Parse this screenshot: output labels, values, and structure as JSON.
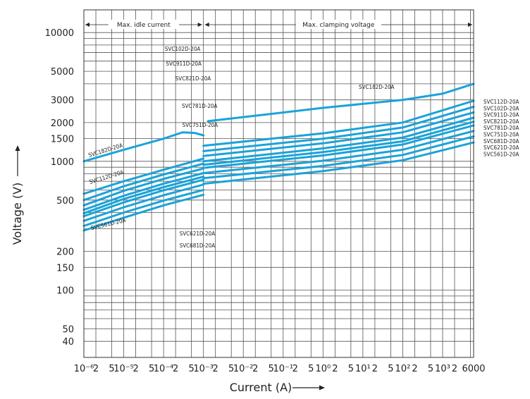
{
  "chart_data": {
    "type": "line",
    "title": "",
    "xlabel": "Current (A)",
    "ylabel": "Voltage (V)",
    "x_scale": "log",
    "y_scale": "log",
    "xlim": [
      1e-06,
      6000
    ],
    "ylim": [
      30,
      15000
    ],
    "grid": true,
    "line_color": "#1aa3d9",
    "sections": [
      {
        "label": "Max. idle current",
        "x_range": [
          1e-06,
          0.001
        ]
      },
      {
        "label": "Max. clamping voltage",
        "x_range": [
          0.001,
          6000
        ]
      }
    ],
    "x_ticks": [
      {
        "x": 1e-06,
        "text": "10⁻⁶"
      },
      {
        "x": 2e-06,
        "text": "2"
      },
      {
        "x": 5e-06,
        "text": "5"
      },
      {
        "x": 1e-05,
        "text": "10⁻⁵"
      },
      {
        "x": 2e-05,
        "text": "2"
      },
      {
        "x": 5e-05,
        "text": "5"
      },
      {
        "x": 0.0001,
        "text": "10⁻⁴"
      },
      {
        "x": 0.0002,
        "text": "2"
      },
      {
        "x": 0.0005,
        "text": "5"
      },
      {
        "x": 0.001,
        "text": "10⁻³"
      },
      {
        "x": 0.002,
        "text": "2"
      },
      {
        "x": 0.005,
        "text": "5"
      },
      {
        "x": 0.01,
        "text": "10⁻²"
      },
      {
        "x": 0.02,
        "text": "2"
      },
      {
        "x": 0.05,
        "text": "5"
      },
      {
        "x": 0.1,
        "text": "10⁻¹"
      },
      {
        "x": 0.2,
        "text": "2"
      },
      {
        "x": 0.5,
        "text": "5"
      },
      {
        "x": 1,
        "text": "10⁰"
      },
      {
        "x": 2,
        "text": "2"
      },
      {
        "x": 5,
        "text": "5"
      },
      {
        "x": 10,
        "text": "10¹"
      },
      {
        "x": 20,
        "text": "2"
      },
      {
        "x": 50,
        "text": "5"
      },
      {
        "x": 100,
        "text": "10²"
      },
      {
        "x": 200,
        "text": "2"
      },
      {
        "x": 500,
        "text": "5"
      },
      {
        "x": 1000,
        "text": "10³"
      },
      {
        "x": 2000,
        "text": "2"
      },
      {
        "x": 6000,
        "text": "6000"
      }
    ],
    "y_ticks": [
      40,
      50,
      100,
      150,
      200,
      500,
      1000,
      1500,
      2000,
      3000,
      5000,
      10000
    ],
    "series": [
      {
        "name": "SVC182D-20A",
        "idle": [
          [
            1e-06,
            1000
          ],
          [
            1e-05,
            1230
          ],
          [
            0.0001,
            1500
          ],
          [
            0.0003,
            1680
          ],
          [
            0.0006,
            1660
          ],
          [
            0.001,
            1590
          ]
        ],
        "clamp": [
          [
            0.0013,
            2050
          ],
          [
            1,
            2600
          ],
          [
            100,
            3000
          ],
          [
            1000,
            3350
          ],
          [
            6000,
            4000
          ]
        ]
      },
      {
        "name": "SVC112D-20A",
        "idle": [
          [
            1e-06,
            560
          ],
          [
            1e-05,
            700
          ],
          [
            0.0001,
            860
          ],
          [
            0.001,
            1050
          ]
        ],
        "clamp": [
          [
            0.001,
            1320
          ],
          [
            1,
            1650
          ],
          [
            100,
            2000
          ],
          [
            6000,
            2950
          ]
        ]
      },
      {
        "name": "SVC102D-20A",
        "idle": [
          [
            1e-06,
            500
          ],
          [
            1e-05,
            640
          ],
          [
            0.0001,
            790
          ],
          [
            0.001,
            960
          ]
        ],
        "clamp": [
          [
            0.001,
            1200
          ],
          [
            1,
            1500
          ],
          [
            100,
            1830
          ],
          [
            6000,
            2650
          ]
        ]
      },
      {
        "name": "SVC911D-20A",
        "idle": [
          [
            1e-06,
            455
          ],
          [
            1e-05,
            590
          ],
          [
            0.0001,
            730
          ],
          [
            0.001,
            880
          ]
        ],
        "clamp": [
          [
            0.001,
            1100
          ],
          [
            1,
            1380
          ],
          [
            100,
            1680
          ],
          [
            6000,
            2400
          ]
        ]
      },
      {
        "name": "SVC821D-20A",
        "idle": [
          [
            1e-06,
            420
          ],
          [
            1e-05,
            540
          ],
          [
            0.0001,
            670
          ],
          [
            0.001,
            810
          ]
        ],
        "clamp": [
          [
            0.001,
            1000
          ],
          [
            1,
            1260
          ],
          [
            100,
            1530
          ],
          [
            6000,
            2180
          ]
        ]
      },
      {
        "name": "SVC781D-20A",
        "idle": [
          [
            1e-06,
            395
          ],
          [
            1e-05,
            510
          ],
          [
            0.0001,
            630
          ],
          [
            0.001,
            760
          ]
        ],
        "clamp": [
          [
            0.001,
            940
          ],
          [
            1,
            1180
          ],
          [
            100,
            1430
          ],
          [
            6000,
            2030
          ]
        ]
      },
      {
        "name": "SVC751D-20A",
        "idle": [
          [
            1e-06,
            375
          ],
          [
            1e-05,
            480
          ],
          [
            0.0001,
            595
          ],
          [
            0.001,
            720
          ]
        ],
        "clamp": [
          [
            0.001,
            890
          ],
          [
            1,
            1110
          ],
          [
            100,
            1350
          ],
          [
            6000,
            1900
          ]
        ]
      },
      {
        "name": "SVC681D-20A",
        "idle": [
          [
            1e-06,
            345
          ],
          [
            1e-05,
            440
          ],
          [
            0.0001,
            545
          ],
          [
            0.001,
            660
          ]
        ],
        "clamp": [
          [
            0.001,
            810
          ],
          [
            1,
            1010
          ],
          [
            100,
            1230
          ],
          [
            6000,
            1720
          ]
        ]
      },
      {
        "name": "SVC621D-20A",
        "idle": [
          [
            1e-06,
            315
          ],
          [
            1e-05,
            400
          ],
          [
            0.0001,
            495
          ],
          [
            0.001,
            600
          ]
        ],
        "clamp": [
          [
            0.001,
            740
          ],
          [
            1,
            920
          ],
          [
            100,
            1120
          ],
          [
            6000,
            1560
          ]
        ]
      },
      {
        "name": "SVC561D-20A",
        "idle": [
          [
            1e-06,
            290
          ],
          [
            1e-05,
            365
          ],
          [
            0.0001,
            455
          ],
          [
            0.001,
            550
          ]
        ],
        "clamp": [
          [
            0.001,
            670
          ],
          [
            1,
            840
          ],
          [
            100,
            1020
          ],
          [
            6000,
            1400
          ]
        ]
      }
    ],
    "annotations": [
      {
        "text": "SVC102D-20A",
        "x": 0.0003,
        "y": 7200,
        "anchor": "middle"
      },
      {
        "text": "SVC911D-20A",
        "x": 0.00032,
        "y": 5550,
        "anchor": "middle"
      },
      {
        "text": "SVC821D-20A",
        "x": 0.00055,
        "y": 4250,
        "anchor": "middle"
      },
      {
        "text": "SVC781D-20A",
        "x": 0.0008,
        "y": 2600,
        "anchor": "middle"
      },
      {
        "text": "SVC751D-20A",
        "x": 0.00082,
        "y": 1850,
        "anchor": "middle"
      },
      {
        "text": "SVC182D-20A",
        "x": 22,
        "y": 3650,
        "anchor": "middle"
      },
      {
        "text": "SVC182D-20A",
        "x": 3.6e-06,
        "y": 1180,
        "anchor": "middle",
        "rotate": -17
      },
      {
        "text": "SVC112D-20A",
        "x": 3.8e-06,
        "y": 730,
        "anchor": "middle",
        "rotate": -17
      },
      {
        "text": "SVC561D-20A",
        "x": 4.2e-06,
        "y": 315,
        "anchor": "middle",
        "rotate": -13
      },
      {
        "text": "SVC621D-20A",
        "x": 0.0007,
        "y": 265,
        "anchor": "middle"
      },
      {
        "text": "SVC681D-20A",
        "x": 0.0007,
        "y": 215,
        "anchor": "middle"
      }
    ],
    "right_labels": [
      "SVC112D-20A",
      "SVC102D-20A",
      "SVC911D-20A",
      "SVC821D-20A",
      "SVC781D-20A",
      "SVC751D-20A",
      "SVC681D-20A",
      "SVC621D-20A",
      "SVC561D-20A"
    ]
  }
}
